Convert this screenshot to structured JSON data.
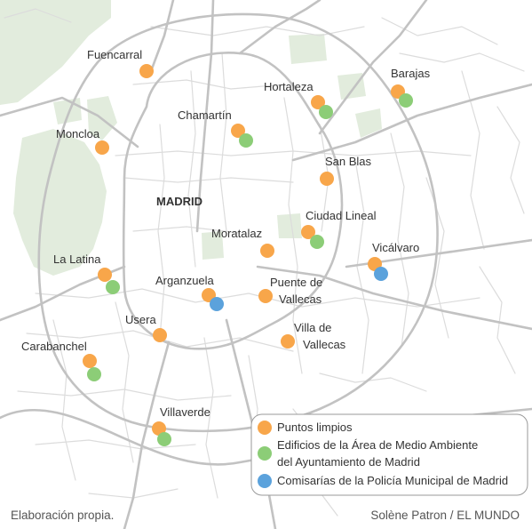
{
  "city_label": "MADRID",
  "colors": {
    "puntos_limpios": "#f8a64a",
    "edificios": "#8ccd77",
    "comisarias": "#5ba2dc"
  },
  "districts": [
    {
      "label": "Fuencarral",
      "markers": [
        "puntos_limpios"
      ]
    },
    {
      "label": "Barajas",
      "markers": [
        "puntos_limpios",
        "edificios"
      ]
    },
    {
      "label": "Hortaleza",
      "markers": [
        "puntos_limpios",
        "edificios"
      ]
    },
    {
      "label": "Chamartín",
      "markers": [
        "puntos_limpios",
        "edificios"
      ]
    },
    {
      "label": "Moncloa",
      "markers": [
        "puntos_limpios"
      ]
    },
    {
      "label": "San Blas",
      "markers": [
        "puntos_limpios"
      ]
    },
    {
      "label": "Ciudad Lineal",
      "markers": [
        "puntos_limpios",
        "edificios"
      ]
    },
    {
      "label": "Moratalaz",
      "markers": [
        "puntos_limpios"
      ]
    },
    {
      "label": "Vicálvaro",
      "markers": [
        "puntos_limpios",
        "comisarias"
      ]
    },
    {
      "label": "La Latina",
      "markers": [
        "puntos_limpios",
        "edificios"
      ]
    },
    {
      "label": "Arganzuela",
      "markers": [
        "puntos_limpios",
        "comisarias"
      ]
    },
    {
      "label": "Puente de\nVallecas",
      "markers": [
        "puntos_limpios"
      ]
    },
    {
      "label": "Usera",
      "markers": [
        "puntos_limpios"
      ]
    },
    {
      "label": "Villa de\nVallecas",
      "markers": [
        "puntos_limpios"
      ]
    },
    {
      "label": "Carabanchel",
      "markers": [
        "puntos_limpios",
        "edificios"
      ]
    },
    {
      "label": "Villaverde",
      "markers": [
        "puntos_limpios",
        "edificios"
      ]
    }
  ],
  "legend": [
    {
      "key": "puntos_limpios",
      "lines": [
        "Puntos limpios"
      ]
    },
    {
      "key": "edificios",
      "lines": [
        "Edificios de la Área de Medio Ambiente",
        "del Ayuntamiento de Madrid"
      ]
    },
    {
      "key": "comisarias",
      "lines": [
        "Comisarías de la Policía Municipal de Madrid"
      ]
    }
  ],
  "credits": {
    "left": "Elaboración propia.",
    "right": "Solène Patron / EL MUNDO"
  }
}
